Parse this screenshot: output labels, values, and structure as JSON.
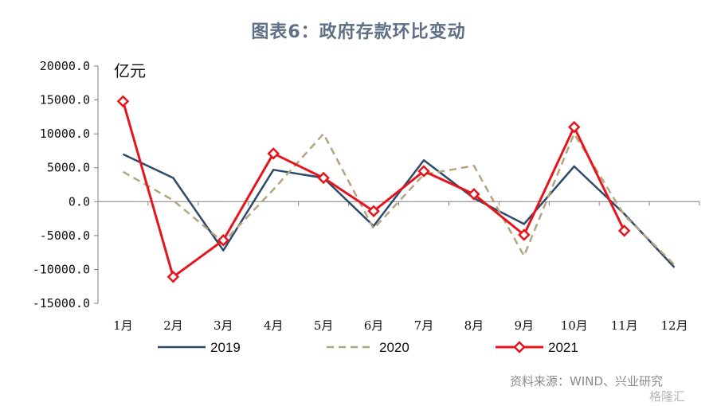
{
  "title": "图表6：政府存款环比变动",
  "source": "资料来源：WIND、兴业研究",
  "watermark": "格隆汇",
  "chart_data": {
    "type": "line",
    "unit_label": "亿元",
    "categories": [
      "1月",
      "2月",
      "3月",
      "4月",
      "5月",
      "6月",
      "7月",
      "8月",
      "9月",
      "10月",
      "11月",
      "12月"
    ],
    "ylim": [
      -15000,
      20000
    ],
    "ytick_values": [
      20000,
      15000,
      10000,
      5000,
      0,
      -5000,
      -10000,
      -15000
    ],
    "ytick_labels": [
      "20000.0",
      "15000.0",
      "10000.0",
      "5000.0",
      "0.0",
      "-5000.0",
      "-10000.0",
      "-15000.0"
    ],
    "grid": false,
    "legend_position": "bottom",
    "series": [
      {
        "name": "2019",
        "color": "#2d4a6b",
        "style": "solid",
        "values": [
          7000,
          3500,
          -7200,
          4700,
          3500,
          -3600,
          6100,
          500,
          -3300,
          5200,
          -1800,
          -9700
        ]
      },
      {
        "name": "2020",
        "color": "#b4a47f",
        "style": "dashed",
        "values": [
          4400,
          200,
          -6000,
          1800,
          10000,
          -4000,
          4000,
          5300,
          -8000,
          10000,
          -2000,
          -9300
        ]
      },
      {
        "name": "2021",
        "color": "#e8141c",
        "style": "solid-marker",
        "values": [
          14800,
          -11100,
          -5700,
          7100,
          3500,
          -1400,
          4500,
          1100,
          -4900,
          11000,
          -4300,
          null
        ]
      }
    ]
  }
}
